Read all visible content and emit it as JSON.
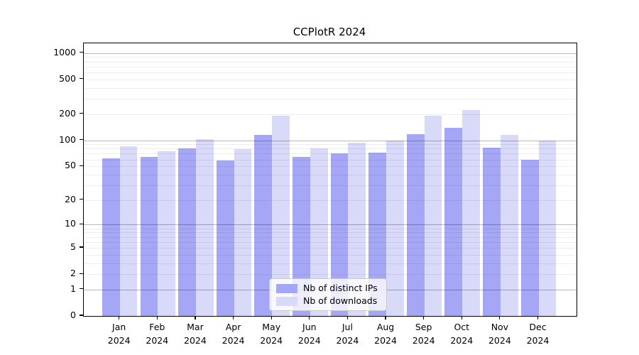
{
  "chart_data": {
    "type": "bar",
    "title": "CCPlotR 2024",
    "y_scale": "log1p",
    "grid": true,
    "legend_position": "lower center",
    "year": "2024",
    "categories": [
      "Jan",
      "Feb",
      "Mar",
      "Apr",
      "May",
      "Jun",
      "Jul",
      "Aug",
      "Sep",
      "Oct",
      "Nov",
      "Dec"
    ],
    "series": [
      {
        "name": "Nb of distinct IPs",
        "color": "#a6a6f7",
        "values": [
          62,
          64,
          80,
          58,
          116,
          64,
          71,
          72,
          118,
          139,
          82,
          60
        ]
      },
      {
        "name": "Nb of downloads",
        "color": "#d9d9f9",
        "values": [
          86,
          75,
          104,
          79,
          190,
          81,
          93,
          100,
          190,
          223,
          116,
          100
        ]
      }
    ],
    "yticks": [
      0,
      1,
      2,
      5,
      10,
      20,
      50,
      100,
      200,
      500,
      1000
    ],
    "ylim": [
      0,
      1290
    ],
    "xlabel": "",
    "ylabel": ""
  }
}
